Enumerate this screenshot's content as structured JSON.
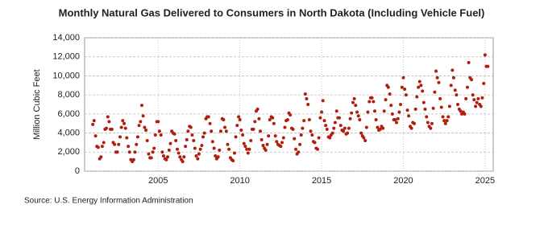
{
  "chart_data": {
    "type": "scatter",
    "title": "Monthly Natural Gas Delivered to Consumers in North Dakota (Including Vehicle Fuel)",
    "y_label": "Million Cubic Feet",
    "source": "Source: U.S. Energy Information Administration",
    "color": "#b01e0e",
    "grid": true,
    "xlim": [
      2000.5,
      2025.5
    ],
    "xticks": [
      2005,
      2010,
      2015,
      2020,
      2025
    ],
    "ylim": [
      0,
      14000
    ],
    "yticks": [
      0,
      {
        "value": 2000,
        "label": "2,000"
      },
      {
        "value": 4000,
        "label": "4,000"
      },
      {
        "value": 6000,
        "label": "6,000"
      },
      {
        "value": 8000,
        "label": "8,000"
      },
      {
        "value": 10000,
        "label": "10,000"
      },
      {
        "value": 12000,
        "label": "12,000"
      },
      {
        "value": 14000,
        "label": "14,000"
      }
    ],
    "x": [
      2001,
      2001.08,
      2001.17,
      2001.25,
      2001.33,
      2001.42,
      2001.5,
      2001.58,
      2001.67,
      2001.75,
      2001.83,
      2001.92,
      2002,
      2002.08,
      2002.17,
      2002.25,
      2002.33,
      2002.42,
      2002.5,
      2002.58,
      2002.67,
      2002.75,
      2002.83,
      2002.92,
      2003,
      2003.08,
      2003.17,
      2003.25,
      2003.33,
      2003.42,
      2003.5,
      2003.58,
      2003.67,
      2003.75,
      2003.83,
      2003.92,
      2004,
      2004.08,
      2004.17,
      2004.25,
      2004.33,
      2004.42,
      2004.5,
      2004.58,
      2004.67,
      2004.75,
      2004.83,
      2004.92,
      2005,
      2005.08,
      2005.17,
      2005.25,
      2005.33,
      2005.42,
      2005.5,
      2005.58,
      2005.67,
      2005.75,
      2005.83,
      2005.92,
      2006,
      2006.08,
      2006.17,
      2006.25,
      2006.33,
      2006.42,
      2006.5,
      2006.58,
      2006.67,
      2006.75,
      2006.83,
      2006.92,
      2007,
      2007.08,
      2007.17,
      2007.25,
      2007.33,
      2007.42,
      2007.5,
      2007.58,
      2007.67,
      2007.75,
      2007.83,
      2007.92,
      2008,
      2008.08,
      2008.17,
      2008.25,
      2008.33,
      2008.42,
      2008.5,
      2008.58,
      2008.67,
      2008.75,
      2008.83,
      2008.92,
      2009,
      2009.08,
      2009.17,
      2009.25,
      2009.33,
      2009.42,
      2009.5,
      2009.58,
      2009.67,
      2009.75,
      2009.83,
      2009.92,
      2010,
      2010.08,
      2010.17,
      2010.25,
      2010.33,
      2010.42,
      2010.5,
      2010.58,
      2010.67,
      2010.75,
      2010.83,
      2010.92,
      2011,
      2011.08,
      2011.17,
      2011.25,
      2011.33,
      2011.42,
      2011.5,
      2011.58,
      2011.67,
      2011.75,
      2011.83,
      2011.92,
      2012,
      2012.08,
      2012.17,
      2012.25,
      2012.33,
      2012.42,
      2012.5,
      2012.58,
      2012.67,
      2012.75,
      2012.83,
      2012.92,
      2013,
      2013.08,
      2013.17,
      2013.25,
      2013.33,
      2013.42,
      2013.5,
      2013.58,
      2013.67,
      2013.75,
      2013.83,
      2013.92,
      2014,
      2014.08,
      2014.17,
      2014.25,
      2014.33,
      2014.42,
      2014.5,
      2014.58,
      2014.67,
      2014.75,
      2014.83,
      2014.92,
      2015,
      2015.08,
      2015.17,
      2015.25,
      2015.33,
      2015.42,
      2015.5,
      2015.58,
      2015.67,
      2015.75,
      2015.83,
      2015.92,
      2016,
      2016.08,
      2016.17,
      2016.25,
      2016.33,
      2016.42,
      2016.5,
      2016.58,
      2016.67,
      2016.75,
      2016.83,
      2016.92,
      2017,
      2017.08,
      2017.17,
      2017.25,
      2017.33,
      2017.42,
      2017.5,
      2017.58,
      2017.67,
      2017.75,
      2017.83,
      2017.92,
      2018,
      2018.08,
      2018.17,
      2018.25,
      2018.33,
      2018.42,
      2018.5,
      2018.58,
      2018.67,
      2018.75,
      2018.83,
      2018.92,
      2019,
      2019.08,
      2019.17,
      2019.25,
      2019.33,
      2019.42,
      2019.5,
      2019.58,
      2019.67,
      2019.75,
      2019.83,
      2019.92,
      2020,
      2020.08,
      2020.17,
      2020.25,
      2020.33,
      2020.42,
      2020.5,
      2020.58,
      2020.67,
      2020.75,
      2020.83,
      2020.92,
      2021,
      2021.08,
      2021.17,
      2021.25,
      2021.33,
      2021.42,
      2021.5,
      2021.58,
      2021.67,
      2021.75,
      2021.83,
      2021.92,
      2022,
      2022.08,
      2022.17,
      2022.25,
      2022.33,
      2022.42,
      2022.5,
      2022.58,
      2022.67,
      2022.75,
      2022.83,
      2022.92,
      2023,
      2023.08,
      2023.17,
      2023.25,
      2023.33,
      2023.42,
      2023.5,
      2023.58,
      2023.67,
      2023.75,
      2023.83,
      2023.92,
      2024,
      2024.08,
      2024.17,
      2024.25,
      2024.33,
      2024.42,
      2024.5,
      2024.58,
      2024.67,
      2024.75,
      2024.83,
      2024.92,
      2025,
      2025.08,
      2025.17
    ],
    "values": [
      4900,
      5300,
      3700,
      2600,
      2500,
      1300,
      1500,
      2600,
      3000,
      4400,
      4500,
      5700,
      5200,
      4400,
      4400,
      3000,
      2800,
      2000,
      2000,
      2800,
      3600,
      4600,
      5300,
      5000,
      4500,
      3500,
      2600,
      2000,
      1200,
      1000,
      1200,
      2000,
      2800,
      3600,
      4800,
      5200,
      6900,
      5800,
      4600,
      4300,
      3200,
      1800,
      1400,
      1400,
      2000,
      2400,
      3800,
      5200,
      5200,
      4200,
      3800,
      2000,
      1600,
      1300,
      1200,
      1500,
      2200,
      2900,
      4200,
      4000,
      3900,
      3200,
      2300,
      1900,
      1500,
      1200,
      1000,
      1500,
      2600,
      3300,
      4200,
      4700,
      4600,
      3800,
      3200,
      2400,
      1600,
      1300,
      1800,
      2300,
      2700,
      3600,
      4000,
      5500,
      5700,
      5700,
      5000,
      4200,
      3100,
      2400,
      1600,
      1300,
      1500,
      2200,
      4200,
      5500,
      5400,
      4600,
      4200,
      2800,
      2300,
      1400,
      1200,
      1100,
      1900,
      3600,
      4800,
      5700,
      5400,
      4300,
      3800,
      2900,
      2600,
      2300,
      1900,
      2300,
      3200,
      4400,
      4400,
      5200,
      6300,
      6500,
      5500,
      4200,
      3300,
      2700,
      2400,
      2200,
      2800,
      3700,
      5400,
      5700,
      5600,
      5000,
      3700,
      3100,
      2800,
      2700,
      2600,
      3000,
      3500,
      4600,
      5300,
      5400,
      6100,
      5900,
      4500,
      4400,
      3400,
      2300,
      1800,
      2000,
      2800,
      3800,
      4500,
      5300,
      8100,
      7600,
      7000,
      5400,
      4200,
      3800,
      3100,
      3000,
      2400,
      2300,
      3500,
      5600,
      6200,
      7400,
      5300,
      4800,
      4400,
      3600,
      3500,
      3800,
      4000,
      4500,
      5100,
      6300,
      5600,
      5600,
      4800,
      4300,
      4200,
      4500,
      3900,
      4000,
      4500,
      5500,
      6100,
      7200,
      7600,
      6900,
      6200,
      5800,
      5400,
      4000,
      3700,
      3500,
      3200,
      4600,
      6200,
      7300,
      7700,
      7700,
      7300,
      6300,
      5400,
      4600,
      4300,
      4400,
      4700,
      4500,
      6300,
      7500,
      9000,
      8800,
      8100,
      6900,
      6000,
      5400,
      5400,
      5100,
      5500,
      6200,
      7000,
      8800,
      9800,
      8600,
      8000,
      6400,
      5800,
      4700,
      4500,
      5100,
      5000,
      6500,
      7800,
      8800,
      9400,
      9000,
      8400,
      7200,
      6500,
      5700,
      5100,
      4700,
      4500,
      5000,
      6600,
      8300,
      10500,
      9800,
      9300,
      7600,
      6700,
      5700,
      5300,
      5000,
      5300,
      5700,
      6800,
      9000,
      10600,
      9800,
      8500,
      8000,
      7000,
      6500,
      6300,
      6000,
      6200,
      6000,
      7600,
      8800,
      11400,
      9800,
      9600,
      8000,
      7500,
      6800,
      7200,
      7600,
      7000,
      6800,
      7700,
      9200,
      12200,
      11000,
      11000
    ]
  }
}
